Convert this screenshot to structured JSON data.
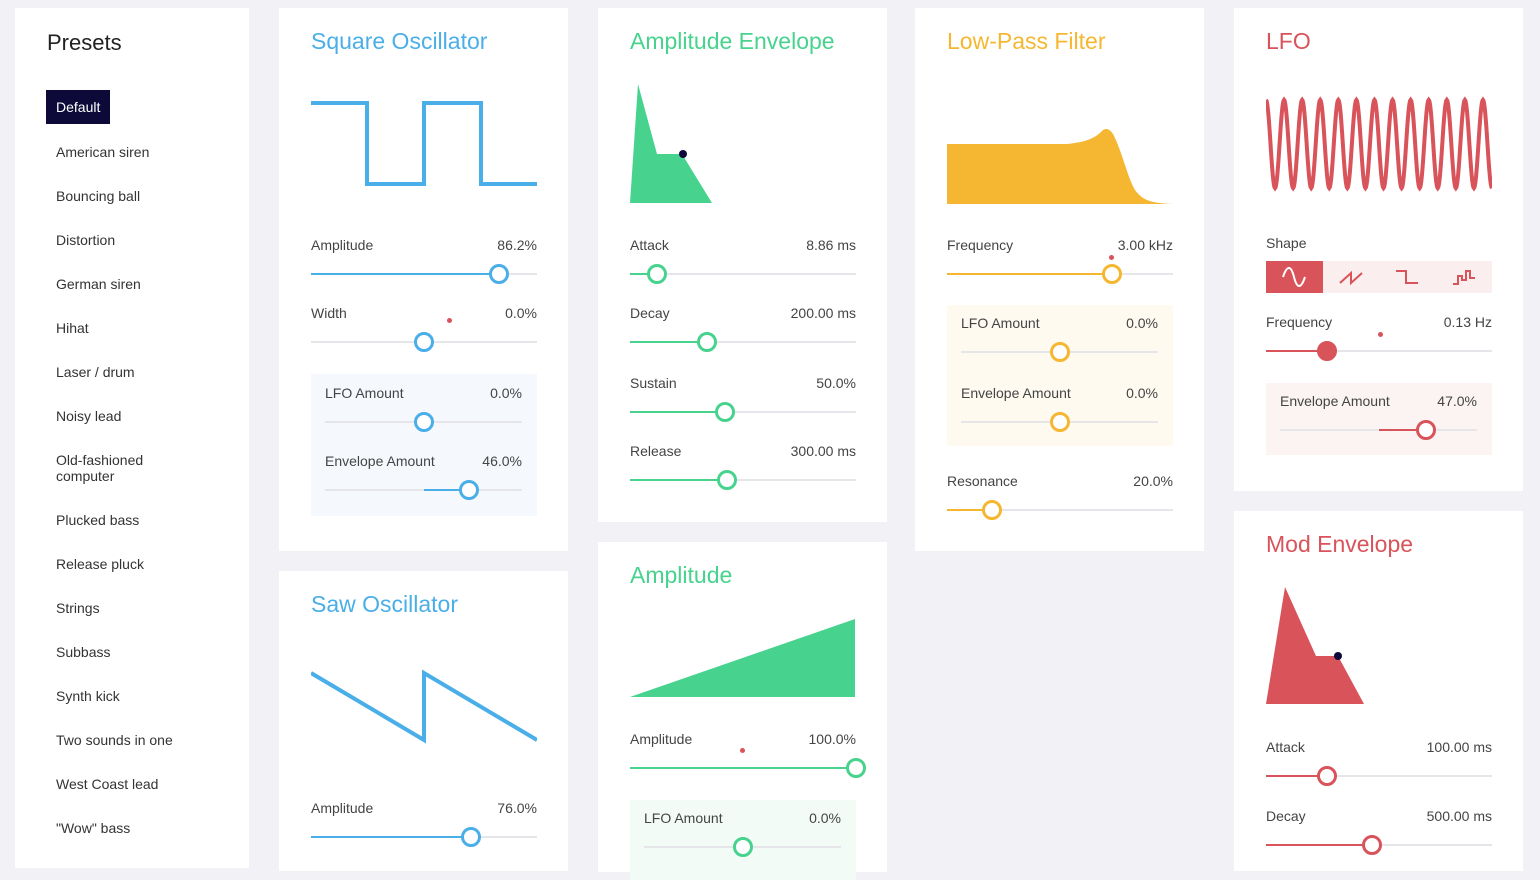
{
  "presets": {
    "title": "Presets",
    "items": [
      "Default",
      "American siren",
      "Bouncing ball",
      "Distortion",
      "German siren",
      "Hihat",
      "Laser / drum",
      "Noisy lead",
      "Old-fashioned computer",
      "Plucked bass",
      "Release pluck",
      "Strings",
      "Subbass",
      "Synth kick",
      "Two sounds in one",
      "West Coast lead",
      "\"Wow\" bass"
    ],
    "active": "Default"
  },
  "square_osc": {
    "title": "Square Oscillator",
    "amplitude": {
      "label": "Amplitude",
      "value": "86.2%",
      "fraction": 0.83
    },
    "width": {
      "label": "Width",
      "value": "0.0%",
      "fraction": 0.5
    },
    "lfo_amount": {
      "label": "LFO Amount",
      "value": "0.0%",
      "fraction": 0.5
    },
    "envelope_amount": {
      "label": "Envelope Amount",
      "value": "46.0%",
      "fraction": 0.73
    }
  },
  "saw_osc": {
    "title": "Saw Oscillator",
    "amplitude": {
      "label": "Amplitude",
      "value": "76.0%",
      "fraction": 0.71
    }
  },
  "amp_envelope": {
    "title": "Amplitude Envelope",
    "attack": {
      "label": "Attack",
      "value": "8.86 ms",
      "fraction": 0.12
    },
    "decay": {
      "label": "Decay",
      "value": "200.00 ms",
      "fraction": 0.34
    },
    "sustain": {
      "label": "Sustain",
      "value": "50.0%",
      "fraction": 0.42
    },
    "release": {
      "label": "Release",
      "value": "300.00 ms",
      "fraction": 0.43
    }
  },
  "amplitude": {
    "title": "Amplitude",
    "amplitude": {
      "label": "Amplitude",
      "value": "100.0%",
      "fraction": 1.0
    },
    "lfo_amount": {
      "label": "LFO Amount",
      "value": "0.0%",
      "fraction": 0.5
    }
  },
  "lowpass": {
    "title": "Low-Pass Filter",
    "frequency": {
      "label": "Frequency",
      "value": "3.00 kHz",
      "fraction": 0.73
    },
    "lfo_amount": {
      "label": "LFO Amount",
      "value": "0.0%",
      "fraction": 0.5
    },
    "envelope_amount": {
      "label": "Envelope Amount",
      "value": "0.0%",
      "fraction": 0.5
    },
    "resonance": {
      "label": "Resonance",
      "value": "20.0%",
      "fraction": 0.2
    }
  },
  "lfo": {
    "title": "LFO",
    "shape_label": "Shape",
    "shapes": [
      "sine-icon",
      "saw-icon",
      "square-icon",
      "random-icon"
    ],
    "frequency": {
      "label": "Frequency",
      "value": "0.13 Hz",
      "fraction": 0.27
    },
    "envelope_amount": {
      "label": "Envelope Amount",
      "value": "47.0%",
      "fraction": 0.74
    }
  },
  "mod_envelope": {
    "title": "Mod Envelope",
    "attack": {
      "label": "Attack",
      "value": "100.00 ms",
      "fraction": 0.27
    },
    "decay": {
      "label": "Decay",
      "value": "500.00 ms",
      "fraction": 0.47
    }
  }
}
